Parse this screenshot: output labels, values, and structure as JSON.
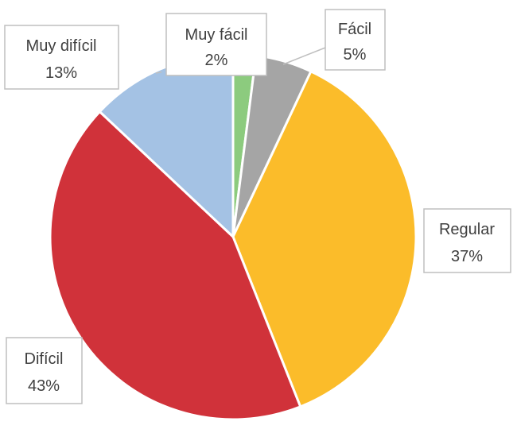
{
  "chart_data": {
    "type": "pie",
    "start_angle_deg": 0,
    "direction": "clockwise",
    "slices": [
      {
        "label": "Muy fácil",
        "value": 2,
        "value_label": "2%",
        "color": "#8ccb7e"
      },
      {
        "label": "Fácil",
        "value": 5,
        "value_label": "5%",
        "color": "#a5a5a5"
      },
      {
        "label": "Regular",
        "value": 37,
        "value_label": "37%",
        "color": "#fbbc2a"
      },
      {
        "label": "Difícil",
        "value": 43,
        "value_label": "43%",
        "color": "#d0323a"
      },
      {
        "label": "Muy difícil",
        "value": 13,
        "value_label": "13%",
        "color": "#a4c2e4"
      }
    ],
    "legend": "none"
  }
}
